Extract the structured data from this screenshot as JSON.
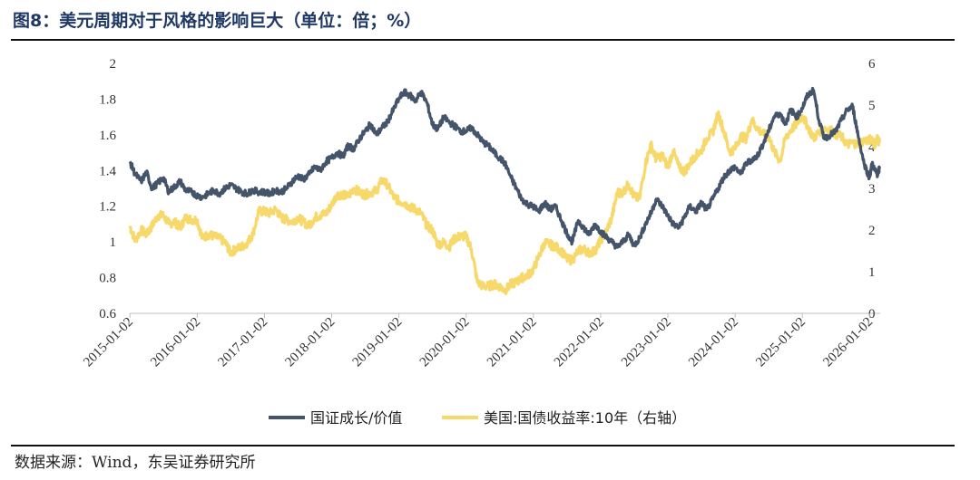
{
  "figure": {
    "title": "图8：美元周期对于风格的影响巨大（单位：倍；%）",
    "source": "数据来源：Wind，东吴证券研究所"
  },
  "chart_data": {
    "type": "line",
    "x_start": "2015-01-02",
    "x_end": "2026-02-15",
    "x_tick_labels": [
      "2015-01-02",
      "2016-01-02",
      "2017-01-02",
      "2018-01-02",
      "2019-01-02",
      "2020-01-02",
      "2021-01-02",
      "2022-01-02",
      "2023-01-02",
      "2024-01-02",
      "2025-01-02",
      "2026-01-02"
    ],
    "y_left": {
      "min": 0.6,
      "max": 2.0,
      "ticks": [
        "0.6",
        "0.8",
        "1",
        "1.2",
        "1.4",
        "1.6",
        "1.8",
        "2"
      ]
    },
    "y_right": {
      "min": 0,
      "max": 6,
      "ticks": [
        "0",
        "1",
        "2",
        "3",
        "4",
        "5",
        "6"
      ]
    },
    "series": [
      {
        "name": "国证成长/价值",
        "axis": "left",
        "color": "#44546a",
        "points": [
          [
            2015.0,
            1.45
          ],
          [
            2015.08,
            1.38
          ],
          [
            2015.17,
            1.34
          ],
          [
            2015.25,
            1.39
          ],
          [
            2015.33,
            1.3
          ],
          [
            2015.42,
            1.33
          ],
          [
            2015.5,
            1.36
          ],
          [
            2015.58,
            1.28
          ],
          [
            2015.67,
            1.31
          ],
          [
            2015.75,
            1.34
          ],
          [
            2015.83,
            1.29
          ],
          [
            2015.92,
            1.28
          ],
          [
            2016.0,
            1.26
          ],
          [
            2016.08,
            1.25
          ],
          [
            2016.17,
            1.27
          ],
          [
            2016.25,
            1.29
          ],
          [
            2016.33,
            1.27
          ],
          [
            2016.42,
            1.3
          ],
          [
            2016.5,
            1.32
          ],
          [
            2016.58,
            1.3
          ],
          [
            2016.67,
            1.28
          ],
          [
            2016.75,
            1.27
          ],
          [
            2016.83,
            1.29
          ],
          [
            2016.92,
            1.28
          ],
          [
            2017.0,
            1.28
          ],
          [
            2017.08,
            1.27
          ],
          [
            2017.17,
            1.29
          ],
          [
            2017.25,
            1.28
          ],
          [
            2017.33,
            1.3
          ],
          [
            2017.42,
            1.34
          ],
          [
            2017.5,
            1.37
          ],
          [
            2017.58,
            1.35
          ],
          [
            2017.67,
            1.38
          ],
          [
            2017.75,
            1.42
          ],
          [
            2017.83,
            1.4
          ],
          [
            2017.92,
            1.45
          ],
          [
            2018.0,
            1.47
          ],
          [
            2018.08,
            1.5
          ],
          [
            2018.17,
            1.48
          ],
          [
            2018.25,
            1.54
          ],
          [
            2018.33,
            1.52
          ],
          [
            2018.42,
            1.58
          ],
          [
            2018.5,
            1.62
          ],
          [
            2018.58,
            1.66
          ],
          [
            2018.67,
            1.6
          ],
          [
            2018.75,
            1.64
          ],
          [
            2018.83,
            1.67
          ],
          [
            2018.92,
            1.74
          ],
          [
            2019.0,
            1.8
          ],
          [
            2019.08,
            1.84
          ],
          [
            2019.17,
            1.82
          ],
          [
            2019.25,
            1.79
          ],
          [
            2019.33,
            1.84
          ],
          [
            2019.42,
            1.78
          ],
          [
            2019.5,
            1.66
          ],
          [
            2019.58,
            1.63
          ],
          [
            2019.67,
            1.7
          ],
          [
            2019.75,
            1.67
          ],
          [
            2019.83,
            1.65
          ],
          [
            2019.92,
            1.62
          ],
          [
            2020.0,
            1.62
          ],
          [
            2020.08,
            1.64
          ],
          [
            2020.17,
            1.6
          ],
          [
            2020.25,
            1.56
          ],
          [
            2020.33,
            1.54
          ],
          [
            2020.42,
            1.5
          ],
          [
            2020.5,
            1.47
          ],
          [
            2020.58,
            1.44
          ],
          [
            2020.67,
            1.36
          ],
          [
            2020.75,
            1.3
          ],
          [
            2020.83,
            1.24
          ],
          [
            2020.92,
            1.21
          ],
          [
            2021.0,
            1.2
          ],
          [
            2021.08,
            1.17
          ],
          [
            2021.17,
            1.22
          ],
          [
            2021.25,
            1.18
          ],
          [
            2021.33,
            1.2
          ],
          [
            2021.42,
            1.12
          ],
          [
            2021.5,
            1.05
          ],
          [
            2021.58,
            1.0
          ],
          [
            2021.67,
            1.12
          ],
          [
            2021.75,
            1.08
          ],
          [
            2021.83,
            1.04
          ],
          [
            2021.92,
            1.1
          ],
          [
            2022.0,
            1.06
          ],
          [
            2022.08,
            1.03
          ],
          [
            2022.17,
            1.0
          ],
          [
            2022.25,
            0.97
          ],
          [
            2022.33,
            1.0
          ],
          [
            2022.42,
            1.04
          ],
          [
            2022.5,
            0.98
          ],
          [
            2022.58,
            1.02
          ],
          [
            2022.67,
            1.1
          ],
          [
            2022.75,
            1.16
          ],
          [
            2022.83,
            1.24
          ],
          [
            2022.92,
            1.2
          ],
          [
            2023.0,
            1.15
          ],
          [
            2023.08,
            1.1
          ],
          [
            2023.17,
            1.08
          ],
          [
            2023.25,
            1.14
          ],
          [
            2023.33,
            1.2
          ],
          [
            2023.42,
            1.17
          ],
          [
            2023.5,
            1.22
          ],
          [
            2023.58,
            1.18
          ],
          [
            2023.67,
            1.24
          ],
          [
            2023.75,
            1.3
          ],
          [
            2023.83,
            1.36
          ],
          [
            2023.92,
            1.4
          ],
          [
            2024.0,
            1.42
          ],
          [
            2024.08,
            1.38
          ],
          [
            2024.17,
            1.44
          ],
          [
            2024.25,
            1.46
          ],
          [
            2024.33,
            1.48
          ],
          [
            2024.42,
            1.55
          ],
          [
            2024.5,
            1.62
          ],
          [
            2024.58,
            1.7
          ],
          [
            2024.67,
            1.72
          ],
          [
            2024.75,
            1.66
          ],
          [
            2024.83,
            1.74
          ],
          [
            2024.92,
            1.7
          ],
          [
            2025.0,
            1.75
          ],
          [
            2025.08,
            1.82
          ],
          [
            2025.17,
            1.85
          ],
          [
            2025.25,
            1.68
          ],
          [
            2025.33,
            1.58
          ],
          [
            2025.42,
            1.6
          ],
          [
            2025.5,
            1.62
          ],
          [
            2025.58,
            1.68
          ],
          [
            2025.67,
            1.74
          ],
          [
            2025.75,
            1.76
          ],
          [
            2025.83,
            1.6
          ],
          [
            2025.92,
            1.44
          ],
          [
            2026.0,
            1.36
          ],
          [
            2026.04,
            1.44
          ],
          [
            2026.08,
            1.4
          ],
          [
            2026.12,
            1.38
          ],
          [
            2026.15,
            1.41
          ]
        ]
      },
      {
        "name": "美国:国债收益率:10年（右轴）",
        "axis": "right",
        "color": "#f7d96b",
        "points": [
          [
            2015.0,
            2.1
          ],
          [
            2015.08,
            1.75
          ],
          [
            2015.17,
            2.0
          ],
          [
            2015.25,
            1.9
          ],
          [
            2015.33,
            2.1
          ],
          [
            2015.42,
            2.35
          ],
          [
            2015.5,
            2.35
          ],
          [
            2015.58,
            2.15
          ],
          [
            2015.67,
            2.2
          ],
          [
            2015.75,
            2.05
          ],
          [
            2015.83,
            2.3
          ],
          [
            2015.92,
            2.25
          ],
          [
            2016.0,
            2.25
          ],
          [
            2016.08,
            1.8
          ],
          [
            2016.17,
            1.9
          ],
          [
            2016.25,
            1.85
          ],
          [
            2016.33,
            1.8
          ],
          [
            2016.42,
            1.7
          ],
          [
            2016.5,
            1.45
          ],
          [
            2016.58,
            1.55
          ],
          [
            2016.67,
            1.6
          ],
          [
            2016.75,
            1.7
          ],
          [
            2016.83,
            1.9
          ],
          [
            2016.92,
            2.45
          ],
          [
            2017.0,
            2.45
          ],
          [
            2017.08,
            2.4
          ],
          [
            2017.17,
            2.5
          ],
          [
            2017.25,
            2.3
          ],
          [
            2017.33,
            2.25
          ],
          [
            2017.42,
            2.2
          ],
          [
            2017.5,
            2.3
          ],
          [
            2017.58,
            2.2
          ],
          [
            2017.67,
            2.1
          ],
          [
            2017.75,
            2.3
          ],
          [
            2017.83,
            2.35
          ],
          [
            2017.92,
            2.4
          ],
          [
            2018.0,
            2.6
          ],
          [
            2018.08,
            2.85
          ],
          [
            2018.17,
            2.85
          ],
          [
            2018.25,
            2.8
          ],
          [
            2018.33,
            3.0
          ],
          [
            2018.42,
            2.9
          ],
          [
            2018.5,
            2.85
          ],
          [
            2018.58,
            2.9
          ],
          [
            2018.67,
            2.95
          ],
          [
            2018.75,
            3.2
          ],
          [
            2018.83,
            3.1
          ],
          [
            2018.92,
            2.8
          ],
          [
            2019.0,
            2.7
          ],
          [
            2019.08,
            2.65
          ],
          [
            2019.17,
            2.55
          ],
          [
            2019.25,
            2.5
          ],
          [
            2019.33,
            2.4
          ],
          [
            2019.42,
            2.1
          ],
          [
            2019.5,
            2.0
          ],
          [
            2019.58,
            1.65
          ],
          [
            2019.67,
            1.7
          ],
          [
            2019.75,
            1.6
          ],
          [
            2019.83,
            1.8
          ],
          [
            2019.92,
            1.85
          ],
          [
            2020.0,
            1.85
          ],
          [
            2020.08,
            1.55
          ],
          [
            2020.17,
            0.75
          ],
          [
            2020.25,
            0.65
          ],
          [
            2020.33,
            0.65
          ],
          [
            2020.42,
            0.7
          ],
          [
            2020.5,
            0.65
          ],
          [
            2020.58,
            0.55
          ],
          [
            2020.67,
            0.7
          ],
          [
            2020.75,
            0.75
          ],
          [
            2020.83,
            0.85
          ],
          [
            2020.92,
            0.92
          ],
          [
            2021.0,
            1.05
          ],
          [
            2021.08,
            1.35
          ],
          [
            2021.17,
            1.7
          ],
          [
            2021.25,
            1.65
          ],
          [
            2021.33,
            1.6
          ],
          [
            2021.42,
            1.5
          ],
          [
            2021.5,
            1.3
          ],
          [
            2021.58,
            1.28
          ],
          [
            2021.67,
            1.5
          ],
          [
            2021.75,
            1.55
          ],
          [
            2021.83,
            1.45
          ],
          [
            2021.92,
            1.5
          ],
          [
            2022.0,
            1.75
          ],
          [
            2022.08,
            1.95
          ],
          [
            2022.17,
            2.3
          ],
          [
            2022.25,
            2.9
          ],
          [
            2022.33,
            2.9
          ],
          [
            2022.42,
            3.1
          ],
          [
            2022.5,
            2.8
          ],
          [
            2022.58,
            2.75
          ],
          [
            2022.67,
            3.6
          ],
          [
            2022.75,
            4.05
          ],
          [
            2022.83,
            3.7
          ],
          [
            2022.92,
            3.8
          ],
          [
            2023.0,
            3.5
          ],
          [
            2023.08,
            3.9
          ],
          [
            2023.17,
            3.5
          ],
          [
            2023.25,
            3.4
          ],
          [
            2023.33,
            3.6
          ],
          [
            2023.42,
            3.8
          ],
          [
            2023.5,
            3.9
          ],
          [
            2023.58,
            4.2
          ],
          [
            2023.67,
            4.35
          ],
          [
            2023.75,
            4.8
          ],
          [
            2023.83,
            4.4
          ],
          [
            2023.92,
            3.88
          ],
          [
            2024.0,
            3.95
          ],
          [
            2024.08,
            4.25
          ],
          [
            2024.17,
            4.2
          ],
          [
            2024.25,
            4.65
          ],
          [
            2024.33,
            4.45
          ],
          [
            2024.42,
            4.3
          ],
          [
            2024.5,
            4.25
          ],
          [
            2024.58,
            3.9
          ],
          [
            2024.67,
            3.65
          ],
          [
            2024.75,
            4.2
          ],
          [
            2024.83,
            4.4
          ],
          [
            2024.92,
            4.55
          ],
          [
            2025.0,
            4.75
          ],
          [
            2025.08,
            4.5
          ],
          [
            2025.17,
            4.2
          ],
          [
            2025.25,
            4.35
          ],
          [
            2025.33,
            4.45
          ],
          [
            2025.42,
            4.4
          ],
          [
            2025.5,
            4.3
          ],
          [
            2025.58,
            4.25
          ],
          [
            2025.67,
            4.05
          ],
          [
            2025.75,
            4.1
          ],
          [
            2025.83,
            4.05
          ],
          [
            2025.92,
            4.15
          ],
          [
            2026.0,
            4.15
          ],
          [
            2026.04,
            4.2
          ],
          [
            2026.08,
            4.05
          ],
          [
            2026.12,
            4.2
          ],
          [
            2026.15,
            4.1
          ]
        ]
      }
    ]
  }
}
